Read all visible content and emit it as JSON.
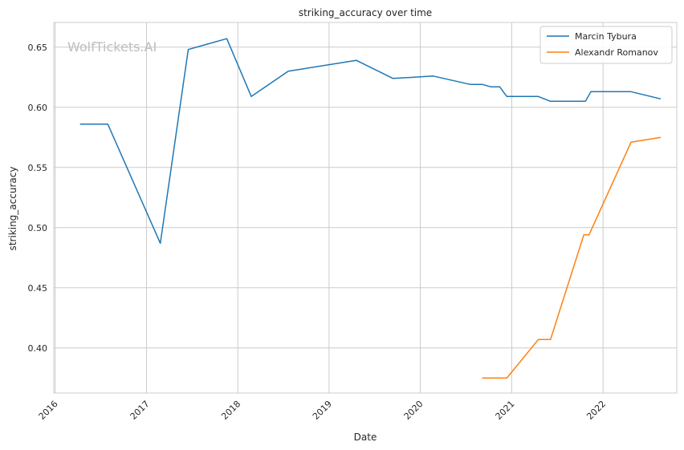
{
  "chart_data": {
    "type": "line",
    "title": "striking_accuracy over time",
    "xlabel": "Date",
    "ylabel": "striking_accuracy",
    "watermark": "WolfTickets.AI",
    "x_ticks": [
      "2016",
      "2017",
      "2018",
      "2019",
      "2020",
      "2021",
      "2022"
    ],
    "y_ticks": [
      "0.40",
      "0.45",
      "0.50",
      "0.55",
      "0.60",
      "0.65"
    ],
    "xlim": [
      "2015-12-27",
      "2022-10-23"
    ],
    "ylim": [
      0.3625,
      0.6705
    ],
    "grid": true,
    "legend_position": "top-right",
    "series": [
      {
        "name": "Marcin Tybura",
        "color": "#1f77b4",
        "points": [
          [
            "2016-04-10",
            0.586
          ],
          [
            "2016-07-30",
            0.586
          ],
          [
            "2017-02-25",
            0.487
          ],
          [
            "2017-06-17",
            0.648
          ],
          [
            "2017-11-18",
            0.657
          ],
          [
            "2018-02-24",
            0.609
          ],
          [
            "2018-07-22",
            0.63
          ],
          [
            "2019-04-20",
            0.639
          ],
          [
            "2019-09-14",
            0.624
          ],
          [
            "2020-02-22",
            0.626
          ],
          [
            "2020-07-18",
            0.619
          ],
          [
            "2020-09-05",
            0.619
          ],
          [
            "2020-10-10",
            0.617
          ],
          [
            "2020-11-14",
            0.617
          ],
          [
            "2020-12-12",
            0.609
          ],
          [
            "2021-04-17",
            0.609
          ],
          [
            "2021-06-05",
            0.605
          ],
          [
            "2021-10-23",
            0.605
          ],
          [
            "2021-11-13",
            0.613
          ],
          [
            "2022-04-23",
            0.613
          ],
          [
            "2022-08-20",
            0.607
          ]
        ]
      },
      {
        "name": "Alexandr Romanov",
        "color": "#ff7f0e",
        "points": [
          [
            "2020-09-05",
            0.375
          ],
          [
            "2020-12-12",
            0.375
          ],
          [
            "2021-04-17",
            0.407
          ],
          [
            "2021-06-05",
            0.407
          ],
          [
            "2021-10-16",
            0.494
          ],
          [
            "2021-11-06",
            0.494
          ],
          [
            "2022-04-23",
            0.571
          ],
          [
            "2022-08-20",
            0.575
          ]
        ]
      }
    ]
  }
}
